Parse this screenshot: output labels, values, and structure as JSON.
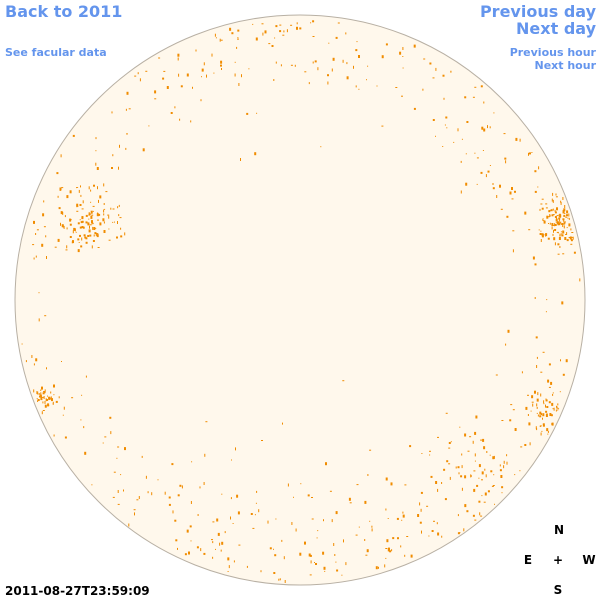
{
  "header": {
    "back_link": "Back to 2011",
    "data_link": "See facular data",
    "previous_day": "Previous day",
    "next_day": "Next day",
    "previous_hour": "Previous hour",
    "next_hour": "Next hour"
  },
  "timestamp": "2011-08-27T23:59:09",
  "compass": {
    "north": "N",
    "east": "E",
    "center": "+",
    "west": "W",
    "south": "S"
  }
}
